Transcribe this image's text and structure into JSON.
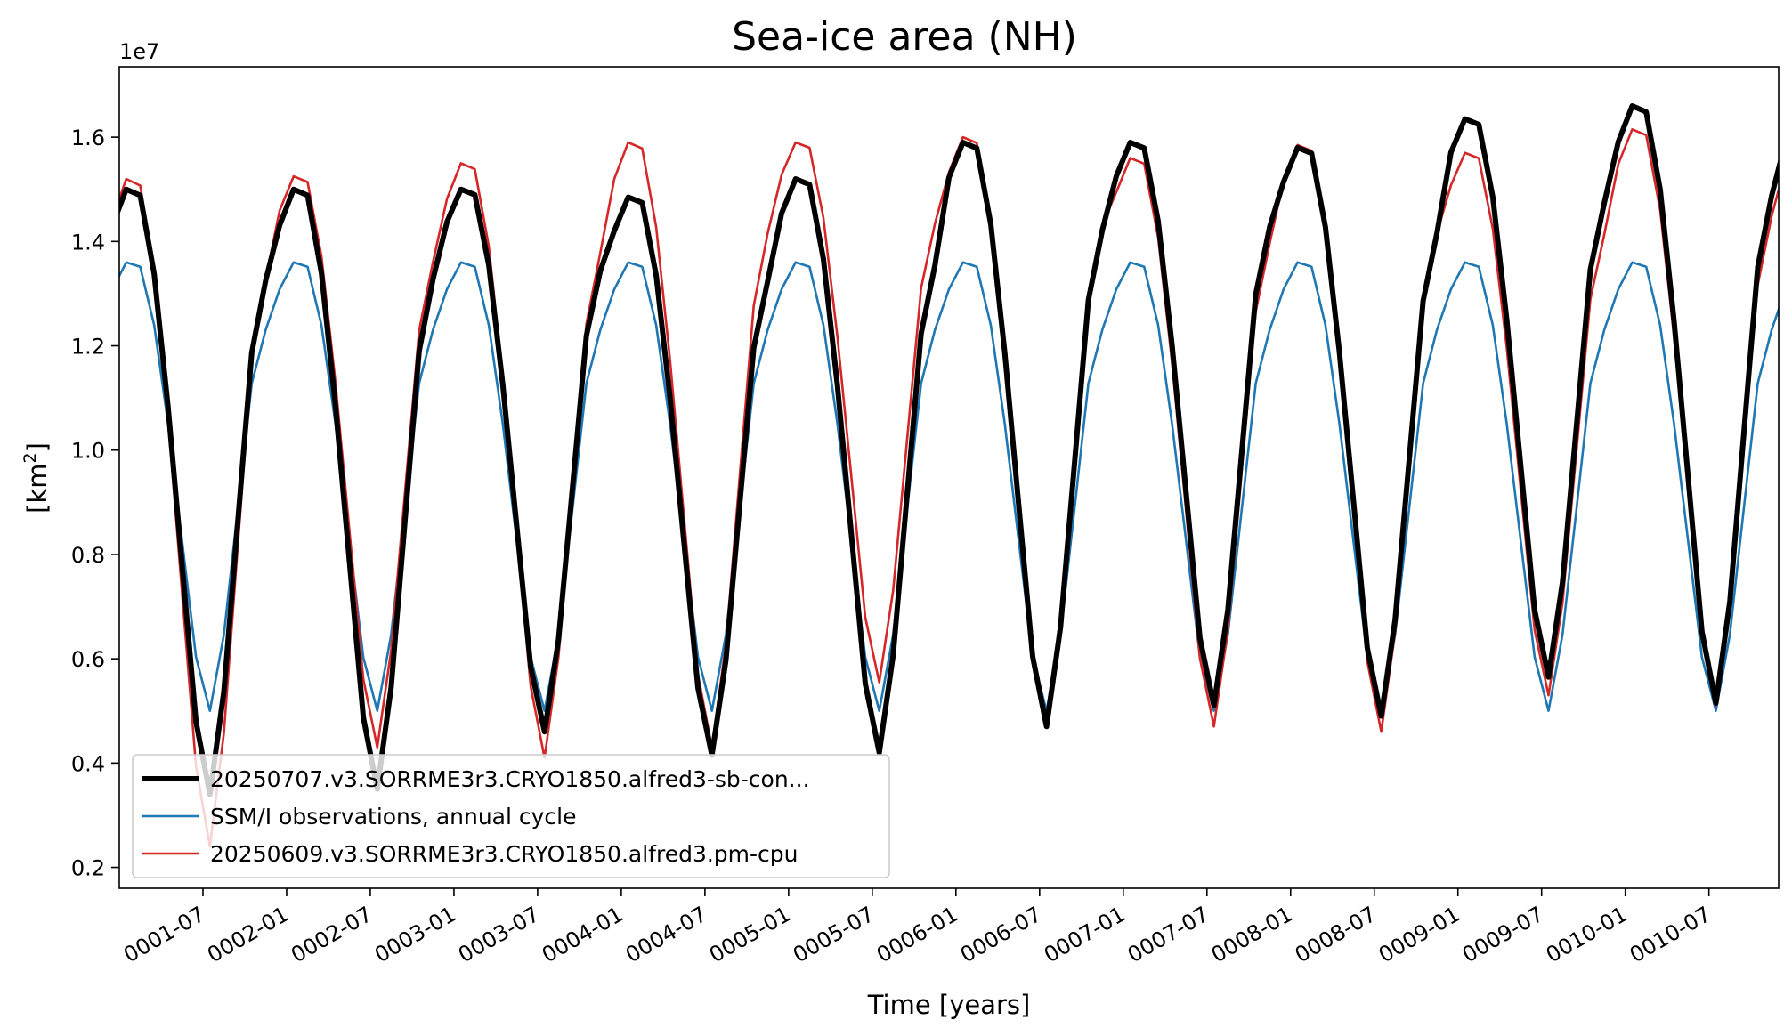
{
  "chart_data": {
    "type": "line",
    "title": "Sea-ice area (NH)",
    "xlabel": "Time [years]",
    "ylabel_main": "[km",
    "ylabel_sup": "2",
    "ylabel_close": "]",
    "y_offset_label": "1e7",
    "y_multiplier": 10000000,
    "xlim": [
      0.0,
      119.0
    ],
    "ylim": [
      0.16,
      1.735
    ],
    "x_unit": "months since 0001-01",
    "xticks": [
      {
        "x": 6,
        "label": "0001-07"
      },
      {
        "x": 12,
        "label": "0002-01"
      },
      {
        "x": 18,
        "label": "0002-07"
      },
      {
        "x": 24,
        "label": "0003-01"
      },
      {
        "x": 30,
        "label": "0003-07"
      },
      {
        "x": 36,
        "label": "0004-01"
      },
      {
        "x": 42,
        "label": "0004-07"
      },
      {
        "x": 48,
        "label": "0005-01"
      },
      {
        "x": 54,
        "label": "0005-07"
      },
      {
        "x": 60,
        "label": "0006-01"
      },
      {
        "x": 66,
        "label": "0006-07"
      },
      {
        "x": 72,
        "label": "0007-01"
      },
      {
        "x": 78,
        "label": "0007-07"
      },
      {
        "x": 84,
        "label": "0008-01"
      },
      {
        "x": 90,
        "label": "0008-07"
      },
      {
        "x": 96,
        "label": "0009-01"
      },
      {
        "x": 102,
        "label": "0009-07"
      },
      {
        "x": 108,
        "label": "0010-01"
      },
      {
        "x": 114,
        "label": "0010-07"
      }
    ],
    "yticks": [
      {
        "y": 0.2,
        "label": "0.2"
      },
      {
        "y": 0.4,
        "label": "0.4"
      },
      {
        "y": 0.6,
        "label": "0.6"
      },
      {
        "y": 0.8,
        "label": "0.8"
      },
      {
        "y": 1.0,
        "label": "1.0"
      },
      {
        "y": 1.2,
        "label": "1.2"
      },
      {
        "y": 1.4,
        "label": "1.4"
      },
      {
        "y": 1.6,
        "label": "1.6"
      }
    ],
    "grid": false,
    "legend_position": "lower-left",
    "series": [
      {
        "name": "20250707.v3.SORRME3r3.CRYO1850.alfred3-sb-con...",
        "color": "#000000",
        "line_width": "thick",
        "cycles": [
          {
            "peak": 1.5,
            "trough": 0.34
          },
          {
            "peak": 1.5,
            "trough": 0.35
          },
          {
            "peak": 1.5,
            "trough": 0.46
          },
          {
            "peak": 1.485,
            "trough": 0.415
          },
          {
            "peak": 1.52,
            "trough": 0.42
          },
          {
            "peak": 1.59,
            "trough": 0.47
          },
          {
            "peak": 1.59,
            "trough": 0.51
          },
          {
            "peak": 1.58,
            "trough": 0.49
          },
          {
            "peak": 1.635,
            "trough": 0.565
          },
          {
            "peak": 1.66,
            "trough": 0.515
          }
        ]
      },
      {
        "name": "SSM/I observations, annual cycle",
        "color": "#1f77b4",
        "line_width": "thin",
        "cycles": [
          {
            "peak": 1.36,
            "trough": 0.5
          },
          {
            "peak": 1.36,
            "trough": 0.5
          },
          {
            "peak": 1.36,
            "trough": 0.5
          },
          {
            "peak": 1.36,
            "trough": 0.5
          },
          {
            "peak": 1.36,
            "trough": 0.5
          },
          {
            "peak": 1.36,
            "trough": 0.5
          },
          {
            "peak": 1.36,
            "trough": 0.5
          },
          {
            "peak": 1.36,
            "trough": 0.5
          },
          {
            "peak": 1.36,
            "trough": 0.5
          },
          {
            "peak": 1.36,
            "trough": 0.5
          }
        ]
      },
      {
        "name": "20250609.v3.SORRME3r3.CRYO1850.alfred3.pm-cpu",
        "color": "#d62728",
        "line_width": "thin",
        "cycles": [
          {
            "peak": 1.52,
            "trough": 0.24
          },
          {
            "peak": 1.525,
            "trough": 0.43
          },
          {
            "peak": 1.55,
            "trough": 0.41
          },
          {
            "peak": 1.59,
            "trough": 0.43
          },
          {
            "peak": 1.59,
            "trough": 0.555
          },
          {
            "peak": 1.6,
            "trough": 0.48
          },
          {
            "peak": 1.56,
            "trough": 0.47
          },
          {
            "peak": 1.585,
            "trough": 0.46
          },
          {
            "peak": 1.57,
            "trough": 0.53
          },
          {
            "peak": 1.615,
            "trough": 0.51
          }
        ]
      }
    ]
  }
}
